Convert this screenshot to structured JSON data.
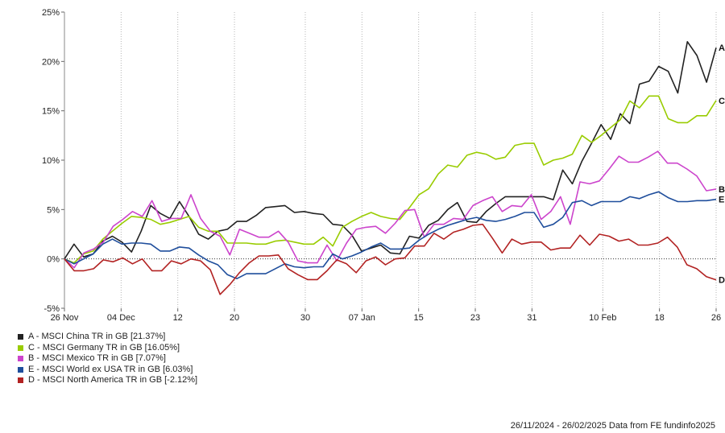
{
  "chart_data": {
    "type": "line",
    "ylim": [
      -5,
      25
    ],
    "y_ticks": [
      "-5%",
      "0%",
      "5%",
      "10%",
      "15%",
      "20%",
      "25%"
    ],
    "y_tick_values": [
      -5,
      0,
      5,
      10,
      15,
      20,
      25
    ],
    "x_range": [
      "2024-11-26",
      "2025-02-26"
    ],
    "x_tick_labels": [
      "26 Nov",
      "04 Dec",
      "12",
      "20",
      "30",
      "07 Jan",
      "15",
      "23",
      "31",
      "10 Feb",
      "18",
      "26"
    ],
    "x_tick_dates": [
      "2024-11-26",
      "2024-12-04",
      "2024-12-12",
      "2024-12-20",
      "2024-12-30",
      "2025-01-07",
      "2025-01-15",
      "2025-01-23",
      "2025-01-31",
      "2025-02-10",
      "2025-02-18",
      "2025-02-26"
    ],
    "grid": "vertical dotted",
    "zero_line": "dotted",
    "series": [
      {
        "name": "A - MSCI China TR in GB [21.37%]",
        "end_label": "A",
        "color": "#222222",
        "values": [
          0,
          1.5,
          0.2,
          0.5,
          1.8,
          2.3,
          1.7,
          0.7,
          2.8,
          5.4,
          4.6,
          4.1,
          5.8,
          4.3,
          2.5,
          2.0,
          2.8,
          3.0,
          3.8,
          3.8,
          4.4,
          5.2,
          5.3,
          5.4,
          4.7,
          4.8,
          4.6,
          4.5,
          3.5,
          3.4,
          2.4,
          0.8,
          1.1,
          1.4,
          0.6,
          0.5,
          2.3,
          2.1,
          3.4,
          3.9,
          5.0,
          5.7,
          3.8,
          3.7,
          4.8,
          5.6,
          6.3,
          6.3,
          6.3,
          6.3,
          6.3,
          6.0,
          9.0,
          7.6,
          9.9,
          11.7,
          13.6,
          12.1,
          14.7,
          13.7,
          17.7,
          18.0,
          19.5,
          19.0,
          16.8,
          22.0,
          20.6,
          17.9,
          21.4
        ]
      },
      {
        "name": "C - MSCI Germany TR in GB [16.05%]",
        "end_label": "C",
        "color": "#99cc00",
        "values": [
          0,
          -0.4,
          0.5,
          0.8,
          2.0,
          2.8,
          3.6,
          4.3,
          4.2,
          4.0,
          3.5,
          3.7,
          4.0,
          4.3,
          3.2,
          2.8,
          2.8,
          1.6,
          1.6,
          1.6,
          1.5,
          1.5,
          1.8,
          1.9,
          1.7,
          1.5,
          1.5,
          2.2,
          1.3,
          3.2,
          3.8,
          4.3,
          4.7,
          4.3,
          4.1,
          4.0,
          5.2,
          6.5,
          7.1,
          8.6,
          9.5,
          9.3,
          10.5,
          10.8,
          10.6,
          10.1,
          10.3,
          11.5,
          11.7,
          11.7,
          9.5,
          10.0,
          10.2,
          10.6,
          12.5,
          11.8,
          12.5,
          13.3,
          14.1,
          16.0,
          15.3,
          16.5,
          16.5,
          14.2,
          13.8,
          13.8,
          14.5,
          14.5,
          16.05
        ]
      },
      {
        "name": "B - MSCI Mexico TR in GB [7.07%]",
        "end_label": "B",
        "color": "#cc44cc",
        "values": [
          0,
          -0.9,
          0.6,
          1.0,
          1.7,
          3.3,
          4.0,
          4.8,
          4.3,
          5.9,
          3.8,
          4.1,
          4.1,
          6.5,
          4.1,
          2.8,
          2.3,
          0.4,
          3.0,
          2.6,
          2.2,
          2.2,
          2.8,
          1.7,
          -0.2,
          -0.4,
          -0.4,
          1.4,
          -0.2,
          1.6,
          3.0,
          3.2,
          3.3,
          2.6,
          3.6,
          4.9,
          5.0,
          2.2,
          3.5,
          3.5,
          4.1,
          4.0,
          5.4,
          5.9,
          6.3,
          4.8,
          5.4,
          5.3,
          6.5,
          4.0,
          4.8,
          6.3,
          3.5,
          7.8,
          7.6,
          7.9,
          9.1,
          10.4,
          9.8,
          9.8,
          10.3,
          10.9,
          9.7,
          9.7,
          9.1,
          8.4,
          6.9,
          7.07
        ]
      },
      {
        "name": "E - MSCI World ex USA TR in GB [6.03%]",
        "end_label": "E",
        "color": "#1f4e9c",
        "values": [
          0,
          -0.5,
          0,
          0.5,
          1.5,
          2.0,
          1.5,
          1.6,
          1.6,
          1.5,
          0.8,
          0.8,
          1.2,
          1.1,
          0.4,
          -0.2,
          -0.6,
          -1.6,
          -2.0,
          -1.5,
          -1.5,
          -1.5,
          -1.0,
          -0.5,
          -0.8,
          -0.9,
          -0.8,
          -0.8,
          0.5,
          0,
          0.3,
          0.7,
          1.2,
          1.6,
          1.0,
          1.0,
          1.1,
          1.9,
          2.5,
          3.0,
          3.4,
          3.7,
          4.0,
          4.2,
          3.9,
          3.8,
          4.0,
          4.3,
          4.7,
          4.7,
          3.2,
          3.5,
          4.2,
          5.7,
          5.9,
          5.4,
          5.8,
          5.8,
          5.8,
          6.3,
          6.1,
          6.5,
          6.8,
          6.2,
          5.8,
          5.8,
          5.9,
          5.9,
          6.03
        ]
      },
      {
        "name": "D - MSCI North America TR in GB [-2.12%]",
        "end_label": "D",
        "color": "#b22222",
        "values": [
          0,
          -1.2,
          -1.2,
          -1.0,
          -0.1,
          -0.3,
          0.1,
          -0.5,
          0,
          -1.2,
          -1.2,
          -0.2,
          -0.5,
          0,
          -0.2,
          -1.1,
          -3.6,
          -2.6,
          -1.4,
          -0.4,
          0.3,
          0.3,
          0.4,
          -1.0,
          -1.6,
          -2.1,
          -2.1,
          -1.2,
          -0.1,
          -0.5,
          -1.4,
          -0.2,
          0.2,
          -0.6,
          0,
          0.1,
          1.3,
          1.3,
          2.6,
          2.0,
          2.7,
          3.0,
          3.4,
          3.5,
          2.1,
          0.6,
          2.0,
          1.5,
          1.7,
          1.7,
          0.9,
          1.1,
          1.1,
          2.4,
          1.4,
          2.5,
          2.3,
          1.8,
          2.0,
          1.4,
          1.4,
          1.6,
          2.2,
          1.2,
          -0.6,
          -1.0,
          -1.8,
          -2.12
        ]
      }
    ]
  },
  "footer": "26/11/2024 - 26/02/2025 Data from FE fundinfo2025"
}
